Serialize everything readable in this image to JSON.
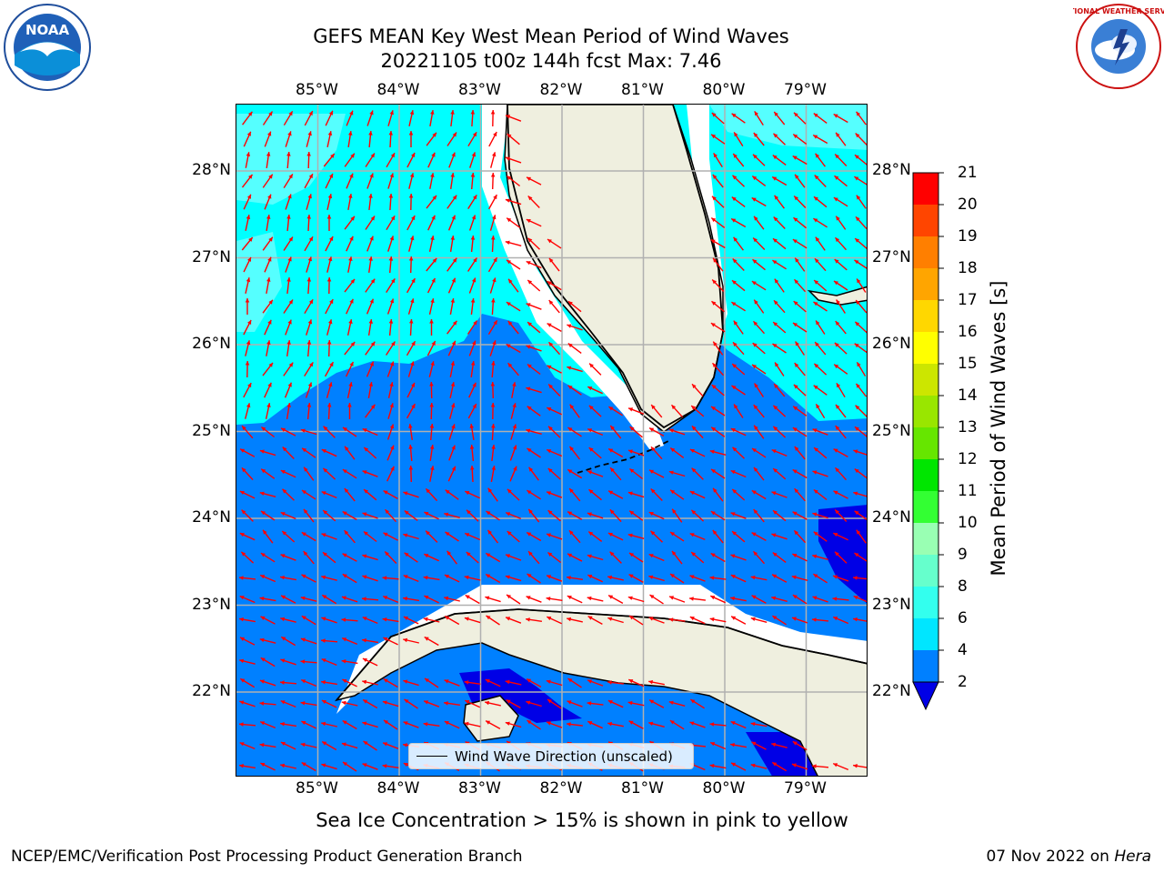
{
  "title_line1": "GEFS MEAN Key West Mean Period of Wind Waves",
  "title_line2": "20221105 t00z 144h fcst   Max: 7.46",
  "lon_labels": [
    "85°W",
    "84°W",
    "83°W",
    "82°W",
    "81°W",
    "80°W",
    "79°W"
  ],
  "lat_labels": [
    "28°N",
    "27°N",
    "26°N",
    "25°N",
    "24°N",
    "23°N",
    "22°N"
  ],
  "legend": {
    "label": "Wind Wave Direction (unscaled)"
  },
  "colorbar": {
    "label": "Mean Period of Wind Waves [s]",
    "ticks": [
      "2",
      "4",
      "6",
      "8",
      "9",
      "10",
      "11",
      "12",
      "13",
      "14",
      "15",
      "16",
      "17",
      "18",
      "19",
      "20",
      "21"
    ],
    "colors": [
      "#0000e6",
      "#0080ff",
      "#00e6ff",
      "#33ffee",
      "#66ffcc",
      "#99ffb3",
      "#33ff33",
      "#00e600",
      "#66e600",
      "#99e600",
      "#cce600",
      "#ffff00",
      "#ffd700",
      "#ffa500",
      "#ff7f00",
      "#ff4500",
      "#ff0000"
    ]
  },
  "map": {
    "colors": {
      "deep_blue": "#0000e6",
      "blue": "#0080ff",
      "cyan": "#00ffff",
      "light_cyan": "#55ffff",
      "land": "#efefdf",
      "arrow": "#ff0000",
      "grid": "#b0b0b0"
    }
  },
  "subtitle": "Sea Ice Concentration > 15% is shown in pink to yellow",
  "footer_left": "NCEP/EMC/Verification Post Processing Product Generation Branch",
  "footer_date": "07 Nov 2022 on ",
  "footer_host": "Hera",
  "logos": {
    "left": "NOAA",
    "right": "NATIONAL WEATHER SERVICE"
  }
}
